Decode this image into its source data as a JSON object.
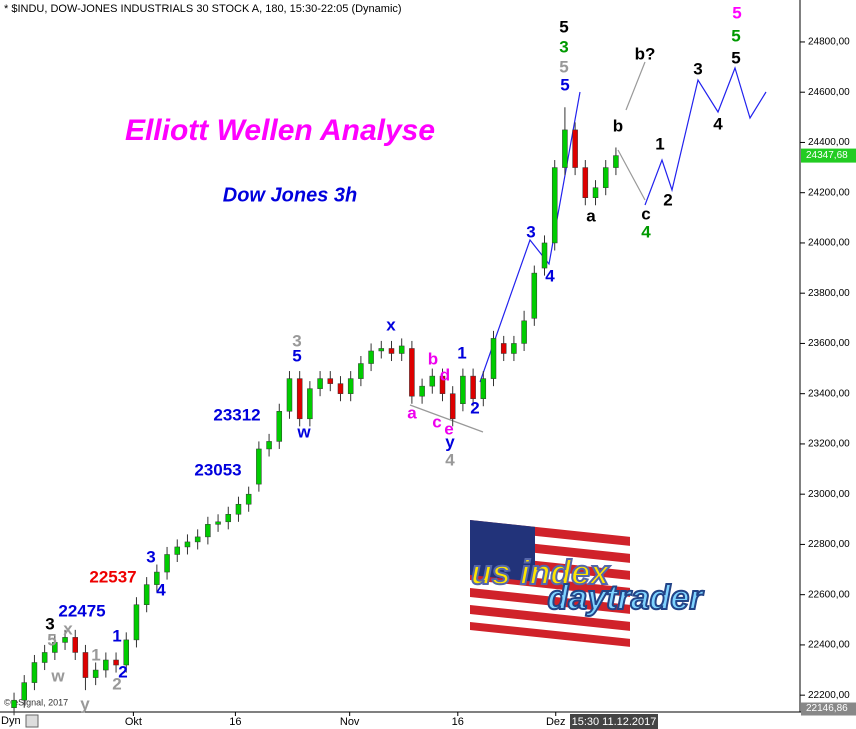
{
  "chart_data": {
    "type": "candlestick",
    "header": "* $INDU, DOW-JONES INDUSTRIALS 30 STOCK A, 180, 15:30-22:05 (Dynamic)",
    "title": "Elliott Wellen Analyse",
    "subtitle": "Dow Jones 3h",
    "copyright": "© eSignal, 2017",
    "corner_label": "Dyn",
    "time_label": "15:30 11.12.2017",
    "logo": [
      "us index",
      "daytrader"
    ],
    "up_color": "#00cc00",
    "down_color": "#dd0000",
    "x": [
      0,
      1,
      2,
      3,
      4,
      5,
      6,
      7,
      8,
      9,
      10,
      11,
      12,
      13,
      14,
      15,
      16,
      17,
      18,
      19,
      20,
      21,
      22,
      23,
      24,
      25,
      26,
      27,
      28,
      29,
      30,
      31,
      32,
      33,
      34,
      35,
      36,
      37,
      38,
      39,
      40,
      41,
      42,
      43,
      44,
      45,
      46,
      47,
      48,
      49,
      50,
      51,
      52,
      53,
      54,
      55,
      56,
      57,
      58,
      59
    ],
    "open": [
      22150,
      22180,
      22250,
      22330,
      22370,
      22410,
      22430,
      22370,
      22270,
      22300,
      22340,
      22320,
      22420,
      22560,
      22640,
      22690,
      22760,
      22790,
      22810,
      22830,
      22880,
      22890,
      22920,
      22960,
      23040,
      23180,
      23210,
      23330,
      23460,
      23300,
      23420,
      23460,
      23440,
      23400,
      23460,
      23520,
      23570,
      23580,
      23560,
      23580,
      23390,
      23430,
      23470,
      23400,
      23360,
      23470,
      23380,
      23460,
      23600,
      23560,
      23600,
      23700,
      23900,
      24000,
      24300,
      24450,
      24300,
      24180,
      24220,
      24300
    ],
    "high": [
      22210,
      22280,
      22360,
      22400,
      22440,
      22460,
      22460,
      22400,
      22330,
      22370,
      22370,
      22450,
      22590,
      22670,
      22720,
      22790,
      22820,
      22840,
      22860,
      22910,
      22920,
      22950,
      22990,
      23030,
      23210,
      23240,
      23360,
      23490,
      23490,
      23450,
      23490,
      23490,
      23470,
      23490,
      23550,
      23600,
      23610,
      23610,
      23620,
      23610,
      23460,
      23500,
      23500,
      23430,
      23500,
      23500,
      23490,
      23650,
      23630,
      23630,
      23730,
      23910,
      24030,
      24330,
      24540,
      24480,
      24330,
      24250,
      24330,
      24380
    ],
    "low": [
      22120,
      22150,
      22220,
      22300,
      22340,
      22380,
      22340,
      22220,
      22240,
      22270,
      22290,
      22290,
      22390,
      22530,
      22610,
      22660,
      22730,
      22760,
      22780,
      22800,
      22850,
      22860,
      22890,
      22930,
      23010,
      23150,
      23180,
      23300,
      23270,
      23270,
      23390,
      23410,
      23370,
      23370,
      23430,
      23490,
      23540,
      23530,
      23530,
      23360,
      23360,
      23400,
      23370,
      23270,
      23330,
      23350,
      23350,
      23430,
      23530,
      23530,
      23570,
      23670,
      23870,
      23970,
      24270,
      24270,
      24150,
      24150,
      24190,
      24270
    ],
    "close": [
      22180,
      22250,
      22330,
      22370,
      22410,
      22430,
      22370,
      22270,
      22300,
      22340,
      22320,
      22420,
      22560,
      22640,
      22690,
      22760,
      22790,
      22810,
      22830,
      22880,
      22890,
      22920,
      22960,
      23000,
      23180,
      23210,
      23330,
      23460,
      23300,
      23420,
      23460,
      23440,
      23400,
      23460,
      23520,
      23570,
      23580,
      23560,
      23590,
      23390,
      23430,
      23470,
      23400,
      23300,
      23470,
      23380,
      23460,
      23620,
      23560,
      23600,
      23690,
      23880,
      24000,
      24300,
      24450,
      24300,
      24180,
      24220,
      24300,
      24347.68
    ],
    "xlim": [
      -0.2,
      59.4
    ],
    "xticks": [
      {
        "value": 11.7,
        "label": "Okt"
      },
      {
        "value": 21.7,
        "label": "16"
      },
      {
        "value": 32.9,
        "label": "Nov"
      },
      {
        "value": 43.5,
        "label": "16"
      },
      {
        "value": 53.1,
        "label": "Dez"
      }
    ],
    "ylim": [
      22133,
      24967
    ],
    "yticks": [
      {
        "value": 22200,
        "label": "22200,00"
      },
      {
        "value": 22400,
        "label": "22400,00"
      },
      {
        "value": 22600,
        "label": "22600,00"
      },
      {
        "value": 22800,
        "label": "22800,00"
      },
      {
        "value": 23000,
        "label": "23000,00"
      },
      {
        "value": 23200,
        "label": "23200,00"
      },
      {
        "value": 23400,
        "label": "23400,00"
      },
      {
        "value": 23600,
        "label": "23600,00"
      },
      {
        "value": 23800,
        "label": "23800,00"
      },
      {
        "value": 24000,
        "label": "24000,00"
      },
      {
        "value": 24200,
        "label": "24200,00"
      },
      {
        "value": 24400,
        "label": "24400,00"
      },
      {
        "value": 24600,
        "label": "24600,00"
      },
      {
        "value": 24800,
        "label": "24800,00"
      }
    ],
    "last_price": {
      "value": 24347.68,
      "label": "24347,68"
    },
    "low_price": {
      "value": 22146.86,
      "label": "22146,86"
    },
    "annotations": [
      {
        "text": "5",
        "color": "#000000"
      },
      {
        "text": "3",
        "color": "#009900"
      },
      {
        "text": "5",
        "color": "#999999"
      },
      {
        "text": "5",
        "color": "#0000dd"
      },
      {
        "text": "b?",
        "color": "#000000"
      },
      {
        "text": "b",
        "color": "#000000"
      },
      {
        "text": "1",
        "color": "#000000"
      },
      {
        "text": "a",
        "color": "#000000"
      },
      {
        "text": "c",
        "color": "#000000"
      },
      {
        "text": "4",
        "color": "#009900"
      },
      {
        "text": "2",
        "color": "#000000"
      },
      {
        "text": "3",
        "color": "#000000"
      },
      {
        "text": "4",
        "color": "#000000"
      },
      {
        "text": "5",
        "color": "#ff00ff"
      },
      {
        "text": "5",
        "color": "#009900"
      },
      {
        "text": "5",
        "color": "#000000"
      },
      {
        "text": "3",
        "color": "#0000dd"
      },
      {
        "text": "4",
        "color": "#0000dd"
      },
      {
        "text": "x",
        "color": "#0000dd"
      },
      {
        "text": "1",
        "color": "#0000dd"
      },
      {
        "text": "2",
        "color": "#0000dd"
      },
      {
        "text": "b",
        "color": "#ee00ee"
      },
      {
        "text": "d",
        "color": "#ee00ee"
      },
      {
        "text": "a",
        "color": "#ee00ee"
      },
      {
        "text": "c",
        "color": "#ee00ee"
      },
      {
        "text": "e",
        "color": "#ee00ee"
      },
      {
        "text": "y",
        "color": "#0000dd"
      },
      {
        "text": "4",
        "color": "#999999"
      },
      {
        "text": "3",
        "color": "#999999"
      },
      {
        "text": "5",
        "color": "#0000dd"
      },
      {
        "text": "w",
        "color": "#0000dd"
      },
      {
        "text": "23312",
        "color": "#0000dd"
      },
      {
        "text": "23053",
        "color": "#0000dd"
      },
      {
        "text": "3",
        "color": "#0000dd"
      },
      {
        "text": "4",
        "color": "#0000dd"
      },
      {
        "text": "22537",
        "color": "#ee0000"
      },
      {
        "text": "22475",
        "color": "#0000dd"
      },
      {
        "text": "3",
        "color": "#000000"
      },
      {
        "text": "x",
        "color": "#999999"
      },
      {
        "text": "5",
        "color": "#999999"
      },
      {
        "text": "1",
        "color": "#0000dd"
      },
      {
        "text": "1",
        "color": "#999999"
      },
      {
        "text": "2",
        "color": "#0000dd"
      },
      {
        "text": "2",
        "color": "#999999"
      },
      {
        "text": "w",
        "color": "#999999"
      },
      {
        "text": "y",
        "color": "#999999"
      }
    ]
  }
}
